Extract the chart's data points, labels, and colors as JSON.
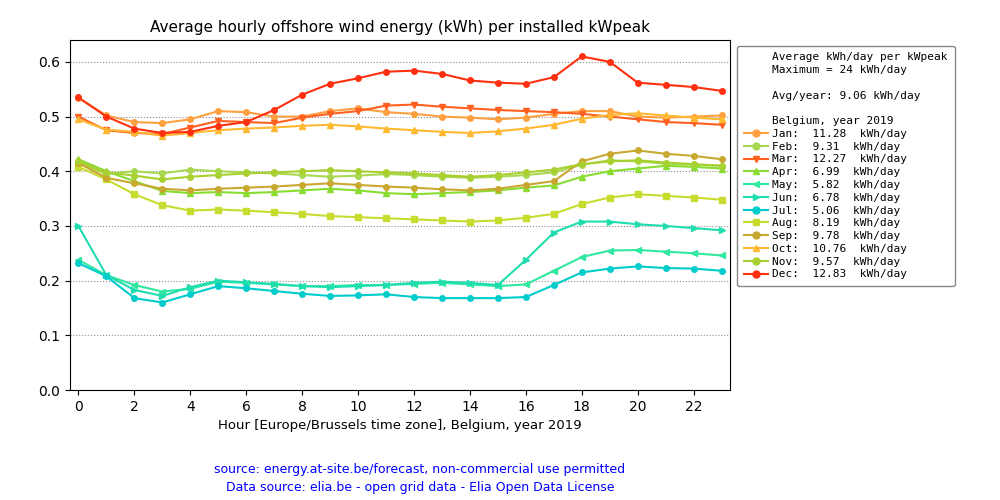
{
  "title": "Average hourly offshore wind energy (kWh) per installed kWpeak",
  "xlabel": "Hour [Europe/Brussels time zone], Belgium, year 2019",
  "legend_title1": "Average kWh/day per kWpeak",
  "legend_title2": "Maximum = 24 kWh/day",
  "legend_avg": "Avg/year: 9.06 kWh/day",
  "legend_country": "Belgium, year 2019",
  "source_line1": "source: energy.at-site.be/forecast, non-commercial use permitted",
  "source_line2": "Data source: elia.be - open grid data - Elia Open Data License",
  "ylim": [
    0.0,
    0.64
  ],
  "xlim": [
    -0.3,
    23.3
  ],
  "months": [
    "Jan",
    "Feb",
    "Mar",
    "Apr",
    "May",
    "Jun",
    "Jul",
    "Aug",
    "Sep",
    "Oct",
    "Nov",
    "Dec"
  ],
  "kwh_day": [
    11.28,
    9.31,
    12.27,
    6.99,
    5.82,
    6.78,
    5.06,
    8.19,
    9.78,
    10.76,
    9.57,
    12.83
  ],
  "colors": [
    "#FFA040",
    "#A8D850",
    "#FF6020",
    "#88DD30",
    "#30E8A0",
    "#20DDB0",
    "#00CCCC",
    "#C8DC30",
    "#C8A830",
    "#FFB830",
    "#A8D030",
    "#FF3010"
  ],
  "markers": [
    "o",
    "o",
    "v",
    "^",
    "<",
    ">",
    "o",
    "s",
    "o",
    "^",
    "o",
    "o"
  ],
  "data": {
    "Jan": [
      0.534,
      0.502,
      0.49,
      0.488,
      0.495,
      0.51,
      0.508,
      0.5,
      0.5,
      0.51,
      0.515,
      0.508,
      0.505,
      0.5,
      0.498,
      0.495,
      0.498,
      0.505,
      0.51,
      0.51,
      0.5,
      0.498,
      0.5,
      0.502
    ],
    "Feb": [
      0.415,
      0.395,
      0.4,
      0.396,
      0.403,
      0.4,
      0.398,
      0.396,
      0.393,
      0.39,
      0.392,
      0.395,
      0.393,
      0.39,
      0.388,
      0.39,
      0.393,
      0.398,
      0.412,
      0.42,
      0.418,
      0.414,
      0.412,
      0.41
    ],
    "Mar": [
      0.5,
      0.475,
      0.47,
      0.468,
      0.48,
      0.492,
      0.49,
      0.488,
      0.498,
      0.505,
      0.51,
      0.52,
      0.522,
      0.518,
      0.515,
      0.512,
      0.51,
      0.508,
      0.505,
      0.5,
      0.495,
      0.49,
      0.488,
      0.485
    ],
    "Apr": [
      0.422,
      0.4,
      0.382,
      0.364,
      0.36,
      0.362,
      0.36,
      0.362,
      0.365,
      0.368,
      0.365,
      0.36,
      0.358,
      0.36,
      0.362,
      0.365,
      0.37,
      0.374,
      0.39,
      0.4,
      0.405,
      0.41,
      0.408,
      0.405
    ],
    "May": [
      0.238,
      0.21,
      0.192,
      0.18,
      0.185,
      0.198,
      0.196,
      0.193,
      0.19,
      0.19,
      0.192,
      0.192,
      0.194,
      0.196,
      0.193,
      0.19,
      0.193,
      0.218,
      0.243,
      0.255,
      0.256,
      0.253,
      0.25,
      0.246
    ],
    "Jun": [
      0.3,
      0.21,
      0.183,
      0.172,
      0.188,
      0.2,
      0.197,
      0.194,
      0.19,
      0.188,
      0.19,
      0.192,
      0.196,
      0.198,
      0.196,
      0.192,
      0.238,
      0.288,
      0.308,
      0.308,
      0.303,
      0.3,
      0.296,
      0.292
    ],
    "Jul": [
      0.232,
      0.208,
      0.168,
      0.16,
      0.175,
      0.19,
      0.186,
      0.181,
      0.176,
      0.172,
      0.173,
      0.175,
      0.17,
      0.168,
      0.168,
      0.168,
      0.17,
      0.192,
      0.215,
      0.222,
      0.226,
      0.223,
      0.222,
      0.218
    ],
    "Aug": [
      0.408,
      0.385,
      0.358,
      0.338,
      0.328,
      0.33,
      0.328,
      0.325,
      0.322,
      0.318,
      0.316,
      0.314,
      0.312,
      0.31,
      0.308,
      0.31,
      0.315,
      0.322,
      0.34,
      0.352,
      0.358,
      0.355,
      0.352,
      0.348
    ],
    "Sep": [
      0.415,
      0.388,
      0.378,
      0.368,
      0.365,
      0.368,
      0.37,
      0.372,
      0.375,
      0.378,
      0.375,
      0.372,
      0.37,
      0.367,
      0.365,
      0.368,
      0.375,
      0.382,
      0.418,
      0.432,
      0.438,
      0.432,
      0.428,
      0.422
    ],
    "Oct": [
      0.495,
      0.476,
      0.472,
      0.465,
      0.47,
      0.475,
      0.478,
      0.48,
      0.483,
      0.485,
      0.482,
      0.478,
      0.475,
      0.472,
      0.47,
      0.473,
      0.478,
      0.485,
      0.496,
      0.503,
      0.506,
      0.502,
      0.498,
      0.495
    ],
    "Nov": [
      0.418,
      0.398,
      0.392,
      0.385,
      0.39,
      0.393,
      0.396,
      0.398,
      0.4,
      0.402,
      0.4,
      0.398,
      0.396,
      0.393,
      0.39,
      0.393,
      0.398,
      0.403,
      0.413,
      0.418,
      0.42,
      0.416,
      0.413,
      0.41
    ],
    "Dec": [
      0.535,
      0.5,
      0.478,
      0.47,
      0.472,
      0.483,
      0.49,
      0.512,
      0.54,
      0.56,
      0.57,
      0.582,
      0.584,
      0.578,
      0.566,
      0.562,
      0.56,
      0.572,
      0.61,
      0.6,
      0.562,
      0.558,
      0.554,
      0.547
    ]
  }
}
